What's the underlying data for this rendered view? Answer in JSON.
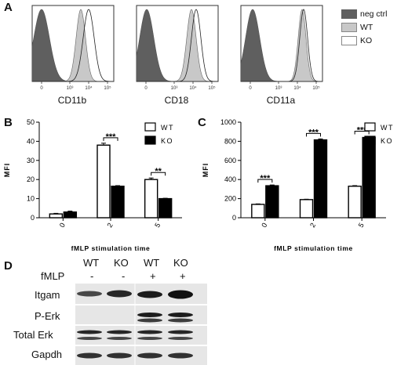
{
  "panel_labels": {
    "a": "A",
    "b": "B",
    "c": "C",
    "d": "D"
  },
  "colors": {
    "neg_ctrl": "#5f5f5f",
    "wt": "#c8c8c8",
    "ko": "#ffffff",
    "bar_wt": "#ffffff",
    "bar_ko": "#000000"
  },
  "histograms": {
    "legend": [
      "neg ctrl",
      "WT",
      "KO"
    ],
    "x_ticks": [
      "0",
      "10³",
      "10⁴",
      "10⁵"
    ],
    "panels": [
      {
        "xlabel": "CD11b"
      },
      {
        "xlabel": "CD18"
      },
      {
        "xlabel": "CD11a"
      }
    ]
  },
  "chart_data": [
    {
      "type": "bar",
      "panel": "B",
      "xlabel": "fMLP stimulation time",
      "ylabel": "MFI",
      "categories": [
        "0",
        "2",
        "5"
      ],
      "ylim": [
        0,
        50
      ],
      "yticks": [
        0,
        10,
        20,
        30,
        40,
        50
      ],
      "series": [
        {
          "name": "WT",
          "values": [
            2,
            38,
            20
          ],
          "errors": [
            0.3,
            1.0,
            0.8
          ]
        },
        {
          "name": "KO",
          "values": [
            3,
            16.5,
            10
          ],
          "errors": [
            0.5,
            0.3,
            0.2
          ]
        }
      ],
      "significance": [
        {
          "category": "2",
          "label": "***"
        },
        {
          "category": "5",
          "label": "**"
        }
      ],
      "legend_position": "top-right"
    },
    {
      "type": "bar",
      "panel": "C",
      "xlabel": "fMLP stimulation time",
      "ylabel": "MFI",
      "categories": [
        "0",
        "2",
        "5"
      ],
      "ylim": [
        0,
        1000
      ],
      "yticks": [
        0,
        200,
        400,
        600,
        800,
        1000
      ],
      "series": [
        {
          "name": "WT",
          "values": [
            140,
            190,
            330
          ],
          "errors": [
            5,
            4,
            6
          ]
        },
        {
          "name": "KO",
          "values": [
            335,
            815,
            840
          ],
          "errors": [
            8,
            10,
            8
          ]
        }
      ],
      "significance": [
        {
          "category": "0",
          "label": "***"
        },
        {
          "category": "2",
          "label": "***"
        },
        {
          "category": "5",
          "label": "***"
        }
      ],
      "legend_position": "top-right"
    }
  ],
  "blot": {
    "genotypes": [
      "WT",
      "KO",
      "WT",
      "KO"
    ],
    "fmlp_label": "fMLP",
    "fmlp_state": [
      "-",
      "-",
      "+",
      "+"
    ],
    "rows": [
      "Itgam",
      "P-Erk",
      "Total Erk",
      "Gapdh"
    ]
  }
}
